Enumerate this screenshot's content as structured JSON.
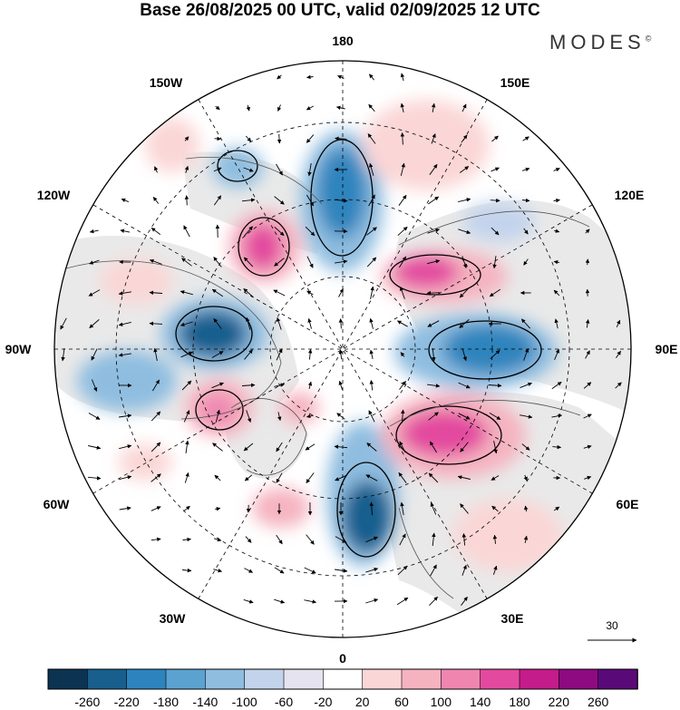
{
  "title": "Base 26/08/2025 00 UTC, valid 02/09/2025 12 UTC",
  "brand": {
    "name": "MODES",
    "mark": "©"
  },
  "map": {
    "projection": "north-polar-stereographic",
    "longitude_labels": [
      {
        "text": "180",
        "lon": 180
      },
      {
        "text": "150E",
        "lon": 150
      },
      {
        "text": "120E",
        "lon": 120
      },
      {
        "text": "90E",
        "lon": 90
      },
      {
        "text": "60E",
        "lon": 60
      },
      {
        "text": "30E",
        "lon": 30
      },
      {
        "text": "0",
        "lon": 0
      },
      {
        "text": "30W",
        "lon": -30
      },
      {
        "text": "60W",
        "lon": -60
      },
      {
        "text": "90W",
        "lon": -90
      },
      {
        "text": "120W",
        "lon": -120
      },
      {
        "text": "150W",
        "lon": -150
      }
    ],
    "vector_reference": {
      "value": "30"
    }
  },
  "colorbar": {
    "colors": [
      "#0c3452",
      "#185f8e",
      "#2d84bd",
      "#5ba2d0",
      "#8fbde0",
      "#c3d3ec",
      "#e6e3f1",
      "#ffffff",
      "#fbd6d6",
      "#f5b3c0",
      "#ef86b0",
      "#e34a9f",
      "#c41c8a",
      "#8e0a80",
      "#5a0a78"
    ],
    "tick_labels": [
      "-260",
      "-220",
      "-180",
      "-140",
      "-100",
      "-60",
      "-20",
      "20",
      "60",
      "100",
      "140",
      "180",
      "220",
      "260"
    ]
  },
  "colors": {
    "negative_strong": "#185f8e",
    "positive_strong": "#c41c8a",
    "land_shade": "#e6e6e6"
  }
}
